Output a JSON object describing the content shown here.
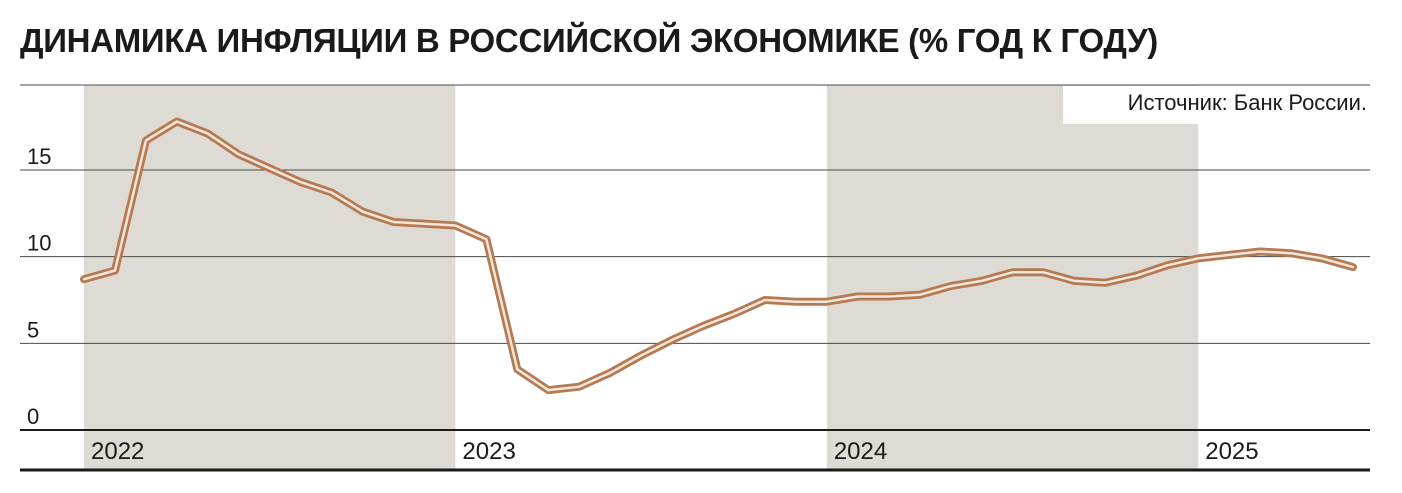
{
  "chart_data": {
    "type": "line",
    "title": "ДИНАМИКА ИНФЛЯЦИИ В РОССИЙСКОЙ ЭКОНОМИКЕ (% ГОД К ГОДУ)",
    "source": "Источник: Банк России.",
    "ylim": [
      0,
      20
    ],
    "yticks": [
      "0",
      "5",
      "10",
      "15"
    ],
    "xlim": [
      "2022-01",
      "2025-06"
    ],
    "year_labels": [
      "2022",
      "2023",
      "2024",
      "2025"
    ],
    "shaded_years": [
      "2022",
      "2024"
    ],
    "grid": true,
    "line_color": "#b57a52",
    "shade_color": "#dddbd3",
    "series": [
      {
        "x": [
          "2022-01",
          "2022-02",
          "2022-03",
          "2022-04",
          "2022-05",
          "2022-06",
          "2022-07",
          "2022-08",
          "2022-09",
          "2022-10",
          "2022-11",
          "2022-12",
          "2023-01",
          "2023-02",
          "2023-03",
          "2023-04",
          "2023-05",
          "2023-06",
          "2023-07",
          "2023-08",
          "2023-09",
          "2023-10",
          "2023-11",
          "2023-12",
          "2024-01",
          "2024-02",
          "2024-03",
          "2024-04",
          "2024-05",
          "2024-06",
          "2024-07",
          "2024-08",
          "2024-09",
          "2024-10",
          "2024-11",
          "2024-12",
          "2025-01",
          "2025-02",
          "2025-03",
          "2025-04",
          "2025-05",
          "2025-06"
        ],
        "values": [
          8.7,
          9.2,
          16.7,
          17.8,
          17.1,
          15.9,
          15.1,
          14.3,
          13.7,
          12.6,
          12.0,
          11.9,
          11.8,
          11.0,
          3.5,
          2.3,
          2.5,
          3.3,
          4.3,
          5.2,
          6.0,
          6.7,
          7.5,
          7.4,
          7.4,
          7.7,
          7.7,
          7.8,
          8.3,
          8.6,
          9.1,
          9.1,
          8.6,
          8.5,
          8.9,
          9.5,
          9.9,
          10.1,
          10.3,
          10.2,
          9.9,
          9.4
        ]
      }
    ]
  }
}
